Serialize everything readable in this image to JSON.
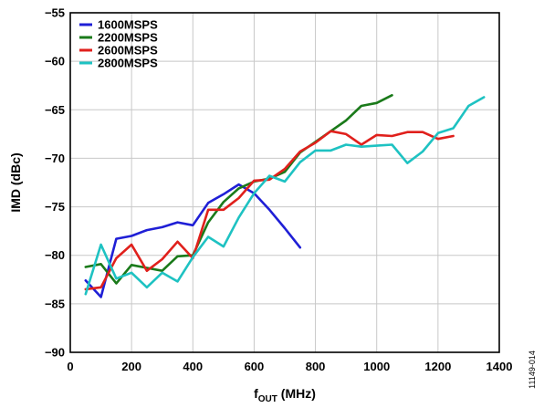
{
  "chart_data": {
    "type": "line",
    "xlabel_main": "f",
    "xlabel_sub": "OUT",
    "xlabel_unit": " (MHz)",
    "ylabel": "IMD (dBc)",
    "xlim": [
      0,
      1400
    ],
    "ylim": [
      -90,
      -55
    ],
    "xticks": [
      0,
      200,
      400,
      600,
      800,
      1000,
      1200,
      1400
    ],
    "yticks": [
      -90,
      -85,
      -80,
      -75,
      -70,
      -65,
      -60,
      -55
    ],
    "xtick_labels": [
      "0",
      "200",
      "400",
      "600",
      "800",
      "1000",
      "1200",
      "1400"
    ],
    "ytick_labels": [
      "−90",
      "−85",
      "−80",
      "−75",
      "−70",
      "−65",
      "−60",
      "−55"
    ],
    "grid": true,
    "legend_position": "top-left",
    "figure_id": "11149-014",
    "series": [
      {
        "name": "1600MSPS",
        "color": "#1f1fd6",
        "x": [
          50,
          100,
          150,
          200,
          250,
          300,
          350,
          400,
          450,
          500,
          550,
          600,
          650,
          700,
          750
        ],
        "y": [
          -82.6,
          -84.3,
          -78.3,
          -78.0,
          -77.4,
          -77.1,
          -76.6,
          -76.9,
          -74.6,
          -73.7,
          -72.7,
          -73.6,
          -75.3,
          -77.2,
          -79.2
        ]
      },
      {
        "name": "2200MSPS",
        "color": "#1a7a1a",
        "x": [
          50,
          100,
          150,
          200,
          250,
          300,
          350,
          400,
          450,
          500,
          550,
          600,
          650,
          700,
          750,
          800,
          850,
          900,
          950,
          1000,
          1050
        ],
        "y": [
          -81.2,
          -80.9,
          -82.9,
          -81.0,
          -81.3,
          -81.6,
          -80.1,
          -80.0,
          -76.6,
          -74.5,
          -73.1,
          -72.4,
          -72.1,
          -71.4,
          -69.4,
          -68.3,
          -67.2,
          -66.1,
          -64.6,
          -64.3,
          -63.5
        ]
      },
      {
        "name": "2600MSPS",
        "color": "#e0201c",
        "x": [
          50,
          100,
          150,
          200,
          250,
          300,
          350,
          400,
          450,
          500,
          550,
          600,
          650,
          700,
          750,
          800,
          850,
          900,
          950,
          1000,
          1050,
          1100,
          1150,
          1200,
          1250
        ],
        "y": [
          -83.5,
          -83.3,
          -80.3,
          -78.9,
          -81.6,
          -80.4,
          -78.6,
          -80.3,
          -75.3,
          -75.3,
          -74.1,
          -72.3,
          -72.2,
          -71.1,
          -69.3,
          -68.4,
          -67.2,
          -67.5,
          -68.6,
          -67.6,
          -67.7,
          -67.3,
          -67.3,
          -68.0,
          -67.7
        ]
      },
      {
        "name": "2800MSPS",
        "color": "#1ec2c2",
        "x": [
          50,
          100,
          150,
          200,
          250,
          300,
          350,
          400,
          450,
          500,
          550,
          600,
          650,
          700,
          750,
          800,
          850,
          900,
          950,
          1000,
          1050,
          1100,
          1150,
          1200,
          1250,
          1300,
          1350
        ],
        "y": [
          -84.0,
          -78.9,
          -82.4,
          -81.8,
          -83.3,
          -81.8,
          -82.7,
          -80.2,
          -78.1,
          -79.1,
          -76.1,
          -73.6,
          -71.8,
          -72.4,
          -70.4,
          -69.2,
          -69.2,
          -68.6,
          -68.8,
          -68.7,
          -68.6,
          -70.5,
          -69.3,
          -67.4,
          -66.9,
          -64.6,
          -63.7
        ]
      }
    ]
  }
}
